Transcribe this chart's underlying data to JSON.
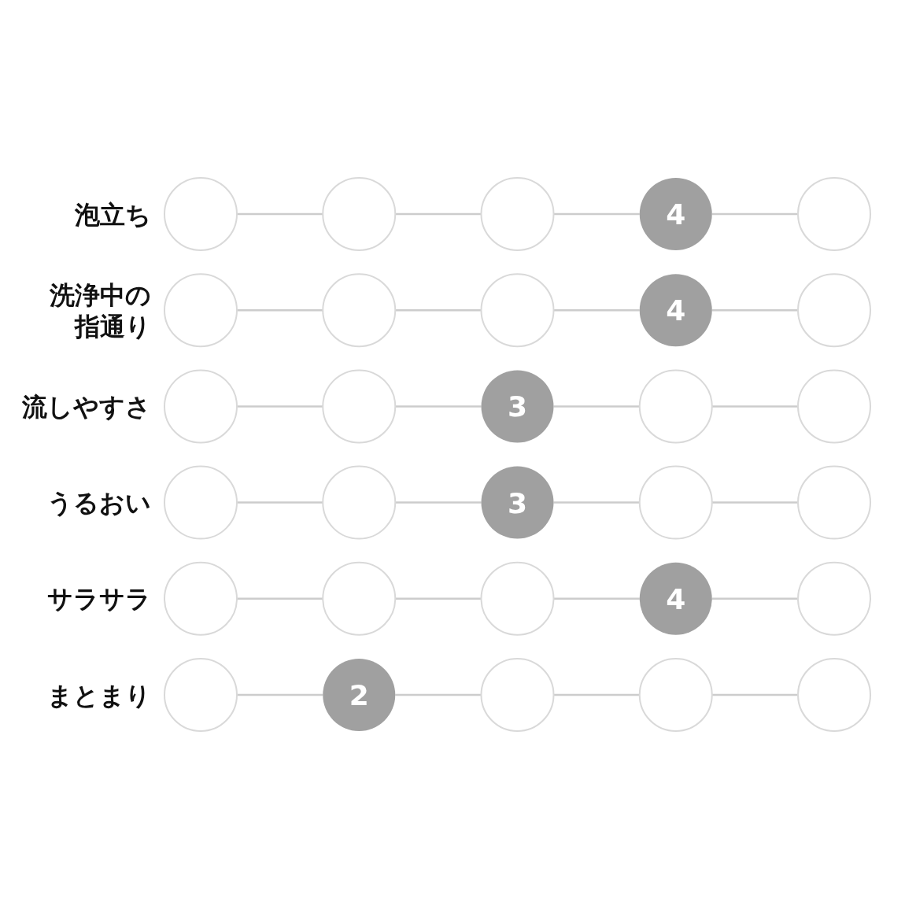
{
  "chart_data": {
    "type": "other",
    "categories": [
      "泡立ち",
      "洗浄中の指通り",
      "流しやすさ",
      "うるおい",
      "サラサラ",
      "まとまり"
    ],
    "values": [
      4,
      4,
      3,
      3,
      4,
      2
    ],
    "color": "#a0a0a0",
    "data_labels": true
  }
}
